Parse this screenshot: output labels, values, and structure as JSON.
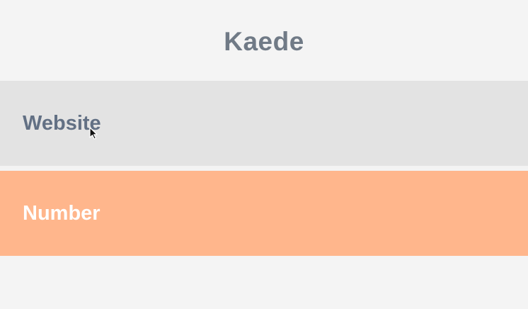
{
  "header": {
    "title": "Kaede"
  },
  "fields": {
    "website_label": "Website",
    "number_label": "Number"
  },
  "colors": {
    "background": "#f3f3f3",
    "title": "#707a86",
    "website_bg": "#e3e3e3",
    "website_text": "#627084",
    "number_bg": "#ffb68c",
    "number_text": "#ffffff"
  },
  "pointer": {
    "icon": "mouse-pointer-icon"
  }
}
